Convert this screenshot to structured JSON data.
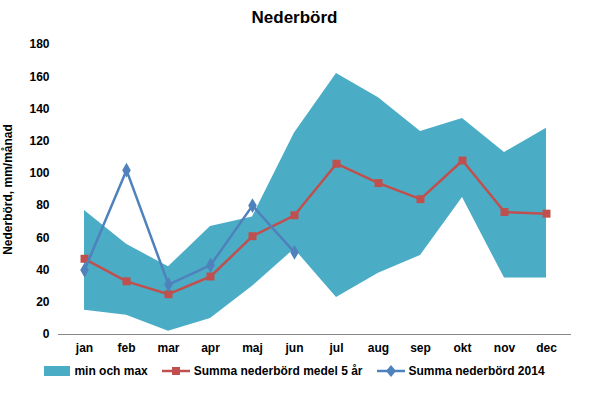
{
  "chart_data": {
    "type": "line",
    "title": "Nederbörd",
    "y_label": "Nederbörd, mm/månad",
    "categories": [
      "jan",
      "feb",
      "mar",
      "apr",
      "maj",
      "jun",
      "jul",
      "aug",
      "sep",
      "okt",
      "nov",
      "dec"
    ],
    "ylim": [
      0,
      180
    ],
    "yticks": [
      0,
      20,
      40,
      60,
      80,
      100,
      120,
      140,
      160,
      180
    ],
    "grid": false,
    "legend": "bottom",
    "series": [
      {
        "name": "min och max",
        "type": "area",
        "color": "#4bacc6",
        "min": [
          15,
          12,
          2,
          10,
          30,
          53,
          23,
          38,
          49,
          85,
          35,
          35
        ],
        "max": [
          77,
          56,
          42,
          67,
          73,
          125,
          162,
          147,
          126,
          134,
          113,
          128
        ]
      },
      {
        "name": "Summa nederbörd medel 5 år",
        "type": "line",
        "color": "#c0504d",
        "marker": "square",
        "values": [
          47,
          33,
          25,
          36,
          61,
          74,
          106,
          94,
          84,
          108,
          76,
          75
        ]
      },
      {
        "name": "Summa nederbörd 2014",
        "type": "line",
        "color": "#4f81bd",
        "marker": "diamond",
        "values": [
          40,
          102,
          31,
          43,
          80,
          51,
          null,
          null,
          null,
          null,
          null,
          null
        ]
      }
    ]
  }
}
